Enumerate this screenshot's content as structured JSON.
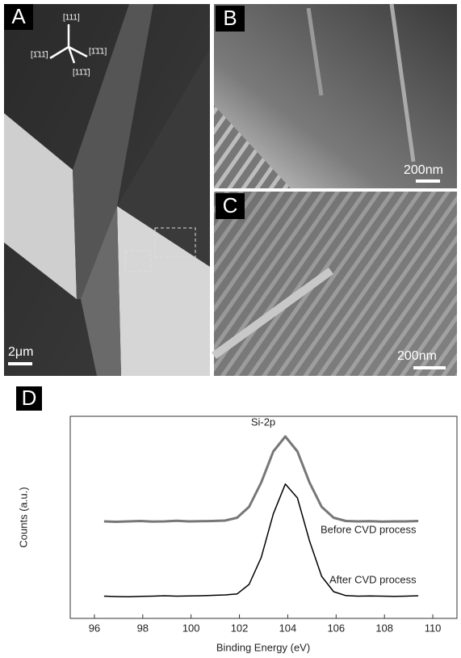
{
  "panels": [
    {
      "label": "A",
      "scale_bar": "2μm",
      "directions": [
        "[111]",
        "[1̄11̄]",
        "[1̄1̄1]",
        "[11̄1̄]"
      ]
    },
    {
      "label": "B",
      "scale_bar": "200nm"
    },
    {
      "label": "C",
      "scale_bar": "200nm"
    },
    {
      "label": "D"
    }
  ],
  "chart_data": {
    "type": "line",
    "x_label": "Binding Energy (eV)",
    "y_label": "Counts (a.u.)",
    "annotations": [
      "Si-2p",
      "Before CVD process",
      "After CVD process"
    ],
    "x": [
      96.4,
      96.9,
      97.4,
      97.9,
      98.4,
      98.9,
      99.4,
      99.9,
      100.4,
      100.9,
      101.4,
      101.9,
      102.4,
      102.9,
      103.4,
      103.9,
      104.4,
      104.9,
      105.4,
      105.9,
      106.4,
      106.9,
      107.4,
      107.9,
      108.4,
      108.9,
      109.4
    ],
    "series": [
      {
        "name": "Before CVD process",
        "color": "#777777",
        "values": [
          4.8,
          4.78,
          4.8,
          4.82,
          4.79,
          4.8,
          4.83,
          4.8,
          4.81,
          4.82,
          4.84,
          4.98,
          5.52,
          6.72,
          8.26,
          9.0,
          8.26,
          6.72,
          5.52,
          4.98,
          4.82,
          4.8,
          4.81,
          4.79,
          4.8,
          4.8,
          4.82
        ]
      },
      {
        "name": "After CVD process",
        "color": "#000000",
        "values": [
          1.1,
          1.08,
          1.07,
          1.09,
          1.1,
          1.12,
          1.1,
          1.11,
          1.12,
          1.14,
          1.16,
          1.21,
          1.68,
          3.01,
          5.17,
          6.65,
          5.96,
          3.83,
          2.08,
          1.32,
          1.13,
          1.1,
          1.11,
          1.1,
          1.09,
          1.1,
          1.12
        ]
      }
    ],
    "xlim": [
      95,
      111
    ],
    "xticks": [
      96,
      98,
      100,
      102,
      104,
      106,
      108,
      110
    ],
    "ylim": [
      0,
      10
    ]
  }
}
